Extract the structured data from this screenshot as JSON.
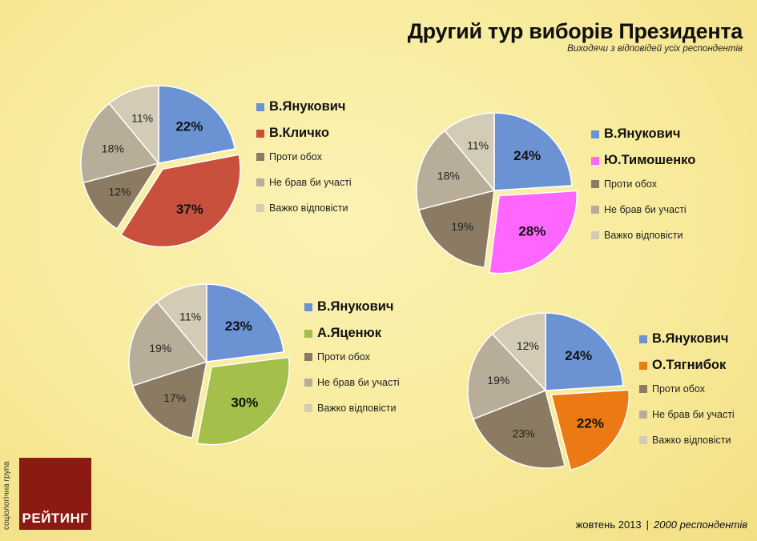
{
  "header": {
    "title": "Другий тур виборів Президента",
    "subtitle": "Виходячи з відповідей усіх респондентів"
  },
  "chart_data": [
    {
      "type": "pie",
      "categories": [
        "В.Янукович",
        "В.Кличко",
        "Проти обох",
        "Не брав би участі",
        "Важко відповісти"
      ],
      "values": [
        22,
        37,
        12,
        18,
        11
      ],
      "labels": [
        "22%",
        "37%",
        "12%",
        "18%",
        "11%"
      ],
      "colors": [
        "#6b93d4",
        "#c8503c",
        "#8b7b62",
        "#b8ad98",
        "#d4cbb6"
      ],
      "legend_placement": "right"
    },
    {
      "type": "pie",
      "categories": [
        "В.Янукович",
        "Ю.Тимошенко",
        "Проти обох",
        "Не брав би участі",
        "Важко відповісти"
      ],
      "values": [
        24,
        28,
        19,
        18,
        11
      ],
      "labels": [
        "24%",
        "28%",
        "19%",
        "18%",
        "11%"
      ],
      "colors": [
        "#6b93d4",
        "#ff66ff",
        "#8b7b62",
        "#b8ad98",
        "#d4cbb6"
      ],
      "legend_placement": "right"
    },
    {
      "type": "pie",
      "categories": [
        "В.Янукович",
        "А.Яценюк",
        "Проти обох",
        "Не брав би участі",
        "Важко відповісти"
      ],
      "values": [
        23,
        30,
        17,
        19,
        11
      ],
      "labels": [
        "23%",
        "30%",
        "17%",
        "19%",
        "11%"
      ],
      "colors": [
        "#6b93d4",
        "#a4bf4a",
        "#8b7b62",
        "#b8ad98",
        "#d4cbb6"
      ],
      "legend_placement": "right"
    },
    {
      "type": "pie",
      "categories": [
        "В.Янукович",
        "О.Тягнибок",
        "Проти обох",
        "Не брав би участі",
        "Важко відповісти"
      ],
      "values": [
        24,
        22,
        23,
        19,
        12
      ],
      "labels": [
        "24%",
        "22%",
        "23%",
        "19%",
        "12%"
      ],
      "colors": [
        "#6b93d4",
        "#ec7a14",
        "#8b7b62",
        "#b8ad98",
        "#d4cbb6"
      ],
      "legend_placement": "right"
    }
  ],
  "logo": {
    "name": "РЕЙТИНГ",
    "vertical_text": "соціологічна група"
  },
  "footer": {
    "date": "жовтень 2013",
    "separator": "|",
    "respondents": "2000 респондентів"
  }
}
